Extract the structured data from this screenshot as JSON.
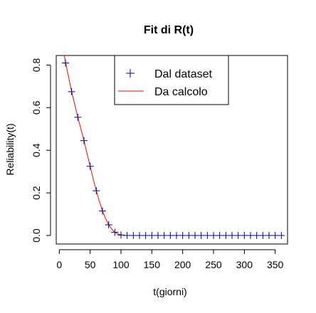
{
  "chart_data": {
    "type": "line",
    "title": "Fit di R(t)",
    "xlabel": "t(giorni)",
    "ylabel": "Reliability(t)",
    "xlim": [
      -5,
      370
    ],
    "ylim": [
      -0.04,
      0.845
    ],
    "xticks": [
      0,
      50,
      100,
      150,
      200,
      250,
      300,
      350
    ],
    "yticks": [
      0.0,
      0.2,
      0.4,
      0.6,
      0.8
    ],
    "ytick_labels": [
      "0.0",
      "0.2",
      "0.4",
      "0.6",
      "0.8"
    ],
    "grid": false,
    "legend_position": "top-center",
    "series": [
      {
        "name": "Dal dataset",
        "style": "points",
        "marker": "plus",
        "color": "#00008b",
        "x": [
          10,
          20,
          30,
          40,
          50,
          60,
          70,
          80,
          90,
          100,
          110,
          120,
          130,
          140,
          150,
          160,
          170,
          180,
          190,
          200,
          210,
          220,
          230,
          240,
          250,
          260,
          270,
          280,
          290,
          300,
          310,
          320,
          330,
          340,
          350,
          360
        ],
        "y": [
          0.81,
          0.675,
          0.555,
          0.445,
          0.325,
          0.21,
          0.115,
          0.05,
          0.015,
          0.002,
          0,
          0,
          0,
          0,
          0,
          0,
          0,
          0,
          0,
          0,
          0,
          0,
          0,
          0,
          0,
          0,
          0,
          0,
          0,
          0,
          0,
          0,
          0,
          0,
          0,
          0
        ]
      },
      {
        "name": "Da calcolo",
        "style": "line",
        "color": "#ff0000",
        "x": [
          8,
          10,
          15,
          20,
          25,
          30,
          35,
          40,
          45,
          50,
          55,
          60,
          65,
          70,
          75,
          80,
          85,
          90,
          95,
          100,
          105,
          110,
          120,
          150,
          200,
          250,
          300,
          360
        ],
        "y": [
          0.845,
          0.815,
          0.745,
          0.675,
          0.615,
          0.555,
          0.5,
          0.445,
          0.385,
          0.325,
          0.265,
          0.21,
          0.16,
          0.115,
          0.08,
          0.05,
          0.03,
          0.015,
          0.007,
          0.003,
          0.001,
          0.0,
          0.0,
          0.0,
          0.0,
          0.0,
          0.0,
          0.0
        ]
      }
    ]
  }
}
